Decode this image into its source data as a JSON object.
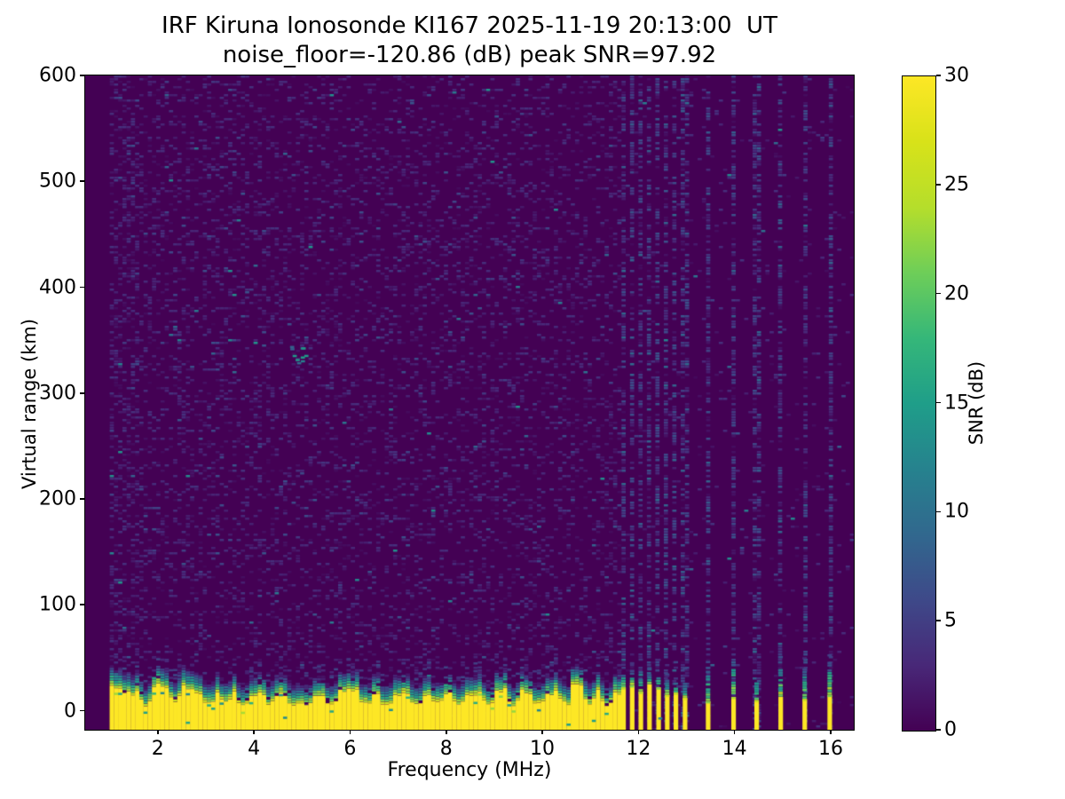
{
  "chart_data": {
    "type": "heatmap",
    "title": "IRF Kiruna Ionosonde KI167 2025-11-19 20:13:00  UT",
    "subtitle": "noise_floor=-120.86 (dB) peak SNR=97.92",
    "xlabel": "Frequency (MHz)",
    "ylabel": "Virtual range (km)",
    "xlim": [
      0.49,
      16.48
    ],
    "ylim": [
      -18,
      600
    ],
    "xticks": [
      2,
      4,
      6,
      8,
      10,
      12,
      14,
      16
    ],
    "yticks": [
      0,
      100,
      200,
      300,
      400,
      500,
      600
    ],
    "grid": false,
    "colormap": "viridis",
    "viridis_stops": [
      "#440154",
      "#482878",
      "#3e4989",
      "#31688e",
      "#26828e",
      "#1f9e89",
      "#35b779",
      "#6ece58",
      "#b5de2b",
      "#d8e219",
      "#fde725"
    ],
    "colorbar": {
      "label": "SNR (dB)",
      "vmin": 0,
      "vmax": 30,
      "ticks": [
        0,
        5,
        10,
        15,
        20,
        25,
        30
      ]
    },
    "values_from_title": {
      "station": "KI167",
      "timestamp_ut": "2025-11-19 20:13:00",
      "noise_floor_db": -120.86,
      "peak_snr_db": 97.92
    },
    "sweep": {
      "start_mhz": 1.0,
      "end_mhz": 16.47,
      "freq_step_mhz": 0.088,
      "range_gate_km": 2.5
    },
    "ground_echo": {
      "freq_range_mhz": [
        1.0,
        11.6
      ],
      "snr_db": 30,
      "mean_top_km": 23,
      "cap_top_km": 45,
      "notch_freqs_mhz": [
        1.68,
        2.33,
        3.05,
        3.38,
        3.72,
        4.3,
        4.78,
        5.06,
        5.58,
        6.3,
        6.68,
        7.3,
        7.78,
        8.2,
        8.85,
        9.32,
        9.9,
        10.45,
        10.95,
        11.28
      ]
    },
    "rfi_stripes": [
      {
        "f_mhz": 11.69,
        "solid_top_km": 22,
        "cap_top_km": 38
      },
      {
        "f_mhz": 11.87,
        "solid_top_km": 24,
        "cap_top_km": 40
      },
      {
        "f_mhz": 12.05,
        "solid_top_km": 18,
        "cap_top_km": 40
      },
      {
        "f_mhz": 12.23,
        "solid_top_km": 25,
        "cap_top_km": 36
      },
      {
        "f_mhz": 12.42,
        "solid_top_km": 22,
        "cap_top_km": 34
      },
      {
        "f_mhz": 12.6,
        "solid_top_km": 15,
        "cap_top_km": 30
      },
      {
        "f_mhz": 12.78,
        "solid_top_km": 17,
        "cap_top_km": 32
      },
      {
        "f_mhz": 12.97,
        "solid_top_km": 12,
        "cap_top_km": 28
      },
      {
        "f_mhz": 13.45,
        "solid_top_km": 9,
        "cap_top_km": 38
      },
      {
        "f_mhz": 13.98,
        "solid_top_km": 13,
        "cap_top_km": 48
      },
      {
        "f_mhz": 14.46,
        "solid_top_km": 10,
        "cap_top_km": 32
      },
      {
        "f_mhz": 14.96,
        "solid_top_km": 13,
        "cap_top_km": 42
      },
      {
        "f_mhz": 15.46,
        "solid_top_km": 11,
        "cap_top_km": 40
      },
      {
        "f_mhz": 15.98,
        "solid_top_km": 15,
        "cap_top_km": 48
      }
    ],
    "background_noise": {
      "typical_snr_db": [
        0,
        6
      ],
      "speckle_density": 0.2,
      "enhanced_below_mhz": 1.6,
      "blob": {
        "f_mhz": 4.9,
        "range_km": 337,
        "snr_db": 14
      }
    }
  }
}
